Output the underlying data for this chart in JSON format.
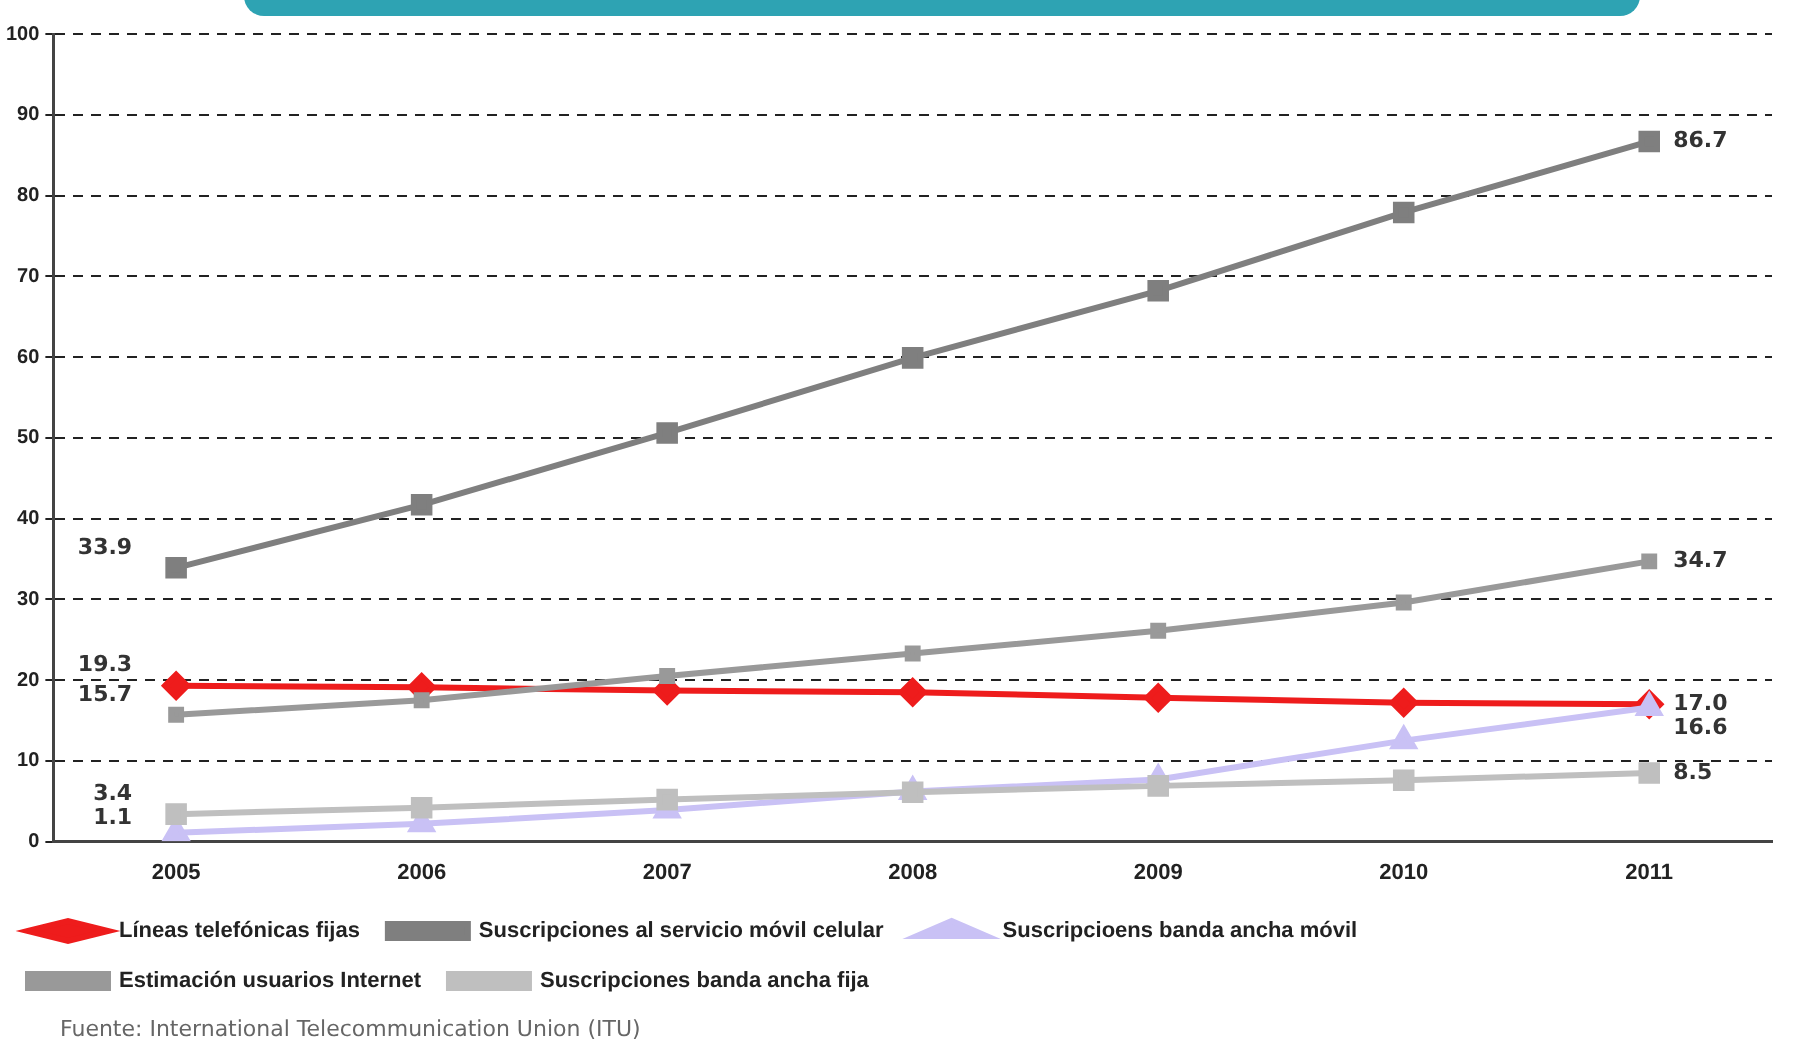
{
  "chart_data": {
    "type": "line",
    "categories": [
      "2005",
      "2006",
      "2007",
      "2008",
      "2009",
      "2010",
      "2011"
    ],
    "series": [
      {
        "name": "Líneas telefónicas fijas",
        "color": "#ee1c1c",
        "marker": "diamond",
        "values": [
          19.3,
          19.1,
          18.7,
          18.5,
          17.8,
          17.2,
          17.0
        ],
        "value_labels": [
          "19.3",
          null,
          null,
          null,
          null,
          null,
          "17.0"
        ]
      },
      {
        "name": "Suscripciones al servicio móvil celular",
        "color": "#7f7f7f",
        "marker": "square",
        "values": [
          33.9,
          41.7,
          50.6,
          59.9,
          68.2,
          77.9,
          86.7
        ],
        "value_labels": [
          "33.9",
          null,
          null,
          null,
          null,
          null,
          "86.7"
        ]
      },
      {
        "name": "Suscripcioens banda ancha móvil",
        "color": "#c9c1f5",
        "marker": "triangle",
        "values": [
          1.1,
          2.2,
          3.9,
          6.2,
          7.7,
          12.5,
          16.6
        ],
        "value_labels": [
          "1.1",
          null,
          null,
          null,
          null,
          null,
          "16.6"
        ]
      },
      {
        "name": "Estimación usuarios Internet",
        "color": "#999999",
        "marker": "square",
        "values": [
          15.7,
          17.5,
          20.5,
          23.3,
          26.1,
          29.6,
          34.7
        ],
        "value_labels": [
          "15.7",
          null,
          null,
          null,
          null,
          null,
          "34.7"
        ]
      },
      {
        "name": "Suscripciones banda ancha fija",
        "color": "#bfbfbf",
        "marker": "square",
        "values": [
          3.4,
          4.2,
          5.2,
          6.1,
          6.9,
          7.6,
          8.5
        ],
        "value_labels": [
          "3.4",
          null,
          null,
          null,
          null,
          null,
          "8.5"
        ]
      }
    ],
    "ylim": [
      0,
      100
    ],
    "yticks": [
      0,
      10,
      20,
      30,
      40,
      50,
      60,
      70,
      80,
      90,
      100
    ],
    "grid": "y",
    "line_style": "solid",
    "legend": "bottom",
    "annotations": [
      "Fuente: International Telecommunication Union (ITU)"
    ]
  }
}
